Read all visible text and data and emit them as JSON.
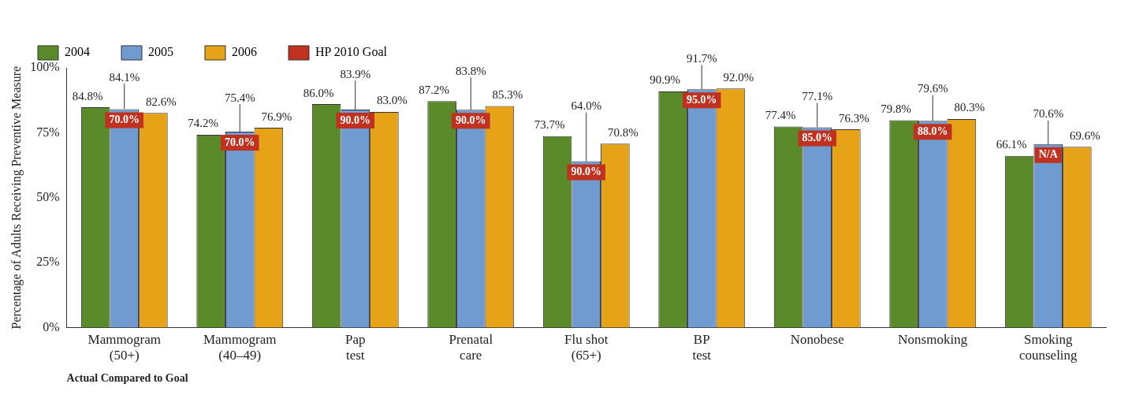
{
  "chart_data": {
    "type": "bar",
    "xlabel": "Actual Compared to Goal",
    "ylabel": "Percentage of Adults Receiving Preventive Measure",
    "categories": [
      "Mammogram\n(50+)",
      "Mammogram\n(40–49)",
      "Pap\ntest",
      "Prenatal\ncare",
      "Flu shot\n(65+)",
      "BP\ntest",
      "Nonobese",
      "Nonsmoking",
      "Smoking\ncounseling"
    ],
    "series": [
      {
        "name": "2004",
        "color": "#5a8a2a",
        "values": [
          84.8,
          74.2,
          86.0,
          87.2,
          73.7,
          90.9,
          77.4,
          79.8,
          66.1
        ],
        "value_labels": [
          "84.8%",
          "74.2%",
          "86.0%",
          "87.2%",
          "73.7%",
          "90.9%",
          "77.4%",
          "79.8%",
          "66.1%"
        ]
      },
      {
        "name": "2005",
        "color": "#6f9bd1",
        "values": [
          84.1,
          75.4,
          83.9,
          83.8,
          64.0,
          91.7,
          77.1,
          79.6,
          70.6
        ],
        "value_labels": [
          "84.1%",
          "75.4%",
          "83.9%",
          "83.8%",
          "64.0%",
          "91.7%",
          "77.1%",
          "79.6%",
          "70.6%"
        ]
      },
      {
        "name": "2006",
        "color": "#e6a317",
        "values": [
          82.6,
          76.9,
          83.0,
          85.3,
          70.8,
          92.0,
          76.3,
          80.3,
          69.6
        ],
        "value_labels": [
          "82.6%",
          "76.9%",
          "83.0%",
          "85.3%",
          "70.8%",
          "92.0%",
          "76.3%",
          "80.3%",
          "69.6%"
        ]
      },
      {
        "name": "HP 2010 Goal",
        "type": "other",
        "color": "#c0311f",
        "values": [
          null,
          null,
          null,
          null,
          null,
          null,
          null,
          null,
          null
        ]
      }
    ],
    "annotations": [
      "70.0%",
      "70.0%",
      "90.0%",
      "90.0%",
      "90.0%",
      "95.0%",
      "85.0%",
      "88.0%",
      "N/A"
    ],
    "ylim": [
      0,
      100
    ],
    "yticks": [
      {
        "value": 0,
        "label": "0%"
      },
      {
        "value": 25,
        "label": "25%"
      },
      {
        "value": 50,
        "label": "50%"
      },
      {
        "value": 75,
        "label": "75%"
      },
      {
        "value": 100,
        "label": "100%"
      }
    ],
    "grid": false,
    "legend": "top left"
  }
}
